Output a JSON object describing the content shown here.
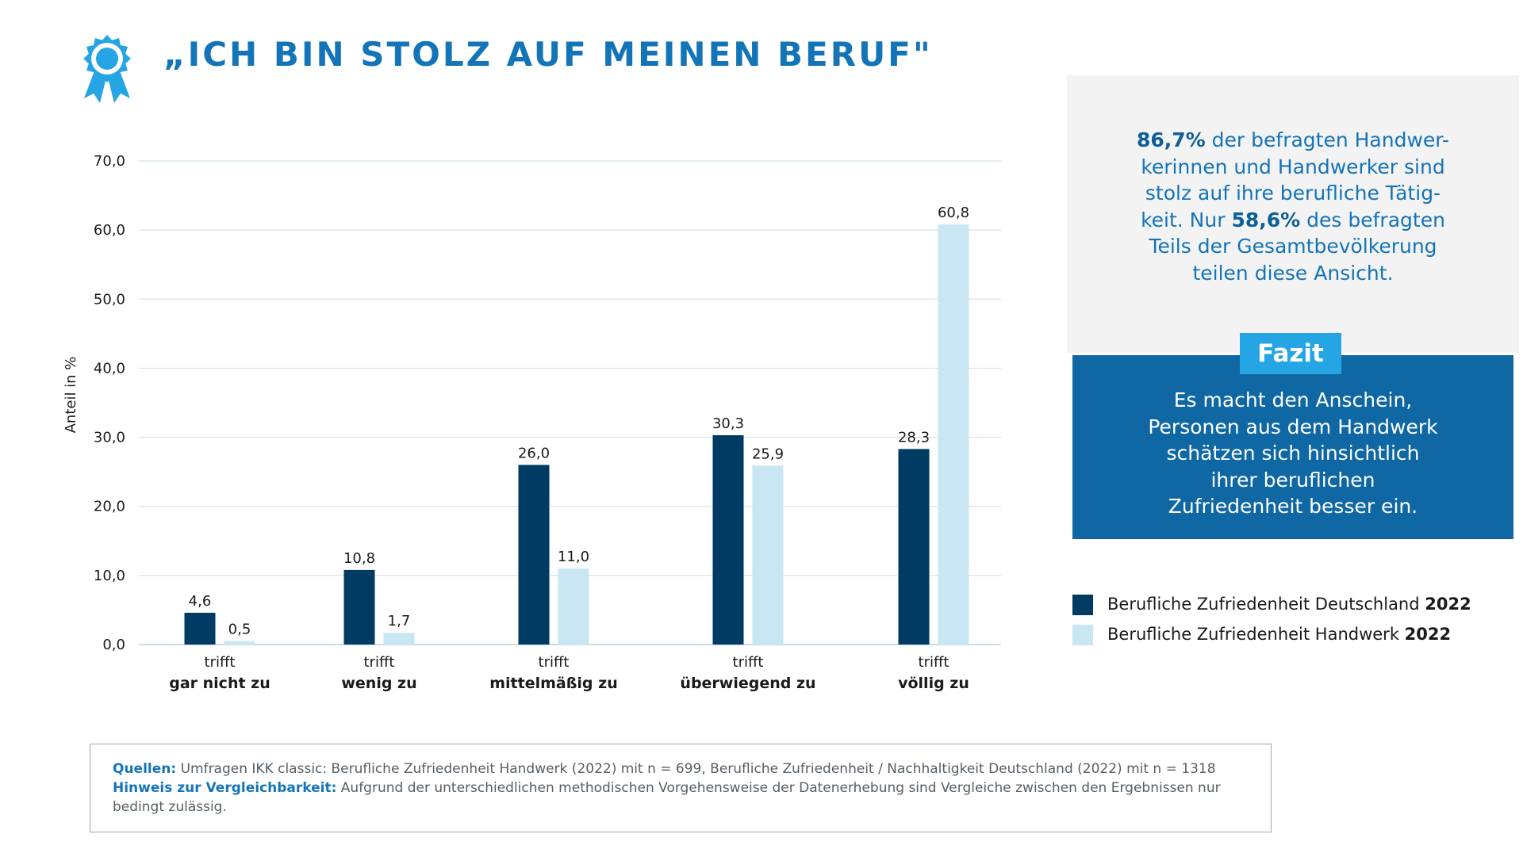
{
  "title": "„ICH BIN STOLZ AUF MEINEN BERUF\"",
  "icon": "award-rosette-icon",
  "colors": {
    "deutschland": "#003b63",
    "handwerk": "#c9e7f2",
    "accent": "#1474b8",
    "fazit_bg": "#0f68a3",
    "fazit_tag": "#26a5e4"
  },
  "chart_data": {
    "type": "bar",
    "ylabel": "Anteil in %",
    "ylim": [
      0,
      70
    ],
    "yticks": [
      "0,0",
      "10,0",
      "20,0",
      "30,0",
      "40,0",
      "50,0",
      "60,0",
      "70,0"
    ],
    "grid": true,
    "categories": [
      {
        "top": "trifft",
        "bottom": "gar nicht zu"
      },
      {
        "top": "trifft",
        "bottom": "wenig zu"
      },
      {
        "top": "trifft",
        "bottom": "mittelmäßig zu"
      },
      {
        "top": "trifft",
        "bottom": "überwiegend zu"
      },
      {
        "top": "trifft",
        "bottom": "völlig zu"
      }
    ],
    "series": [
      {
        "name": "Berufliche Zufriedenheit Deutschland 2022",
        "values": [
          4.6,
          10.8,
          26.0,
          30.3,
          28.3
        ],
        "labels": [
          "4,6",
          "10,8",
          "26,0",
          "30,3",
          "28,3"
        ]
      },
      {
        "name": "Berufliche Zufriedenheit Handwerk 2022",
        "values": [
          0.5,
          1.7,
          11.0,
          25.9,
          60.8
        ],
        "labels": [
          "0,5",
          "1,7",
          "11,0",
          "25,9",
          "60,8"
        ]
      }
    ],
    "legend_position": "right"
  },
  "legend": [
    {
      "text": "Berufliche Zufriedenheit Deutschland ",
      "bold": "2022"
    },
    {
      "text": "Berufliche Zufriedenheit Handwerk ",
      "bold": "2022"
    }
  ],
  "info": {
    "l1_bold": "86,7%",
    "l1_rest": " der befragten Handwer-",
    "l2": "kerinnen und Handwerker sind",
    "l3": "stolz auf ihre berufliche Tätig-",
    "l4_pre": "keit. Nur ",
    "l4_bold": "58,6%",
    "l4_post": " des befragten",
    "l5": "Teils der Gesamtbevölkerung",
    "l6": "teilen diese Ansicht."
  },
  "fazit": {
    "tag": "Fazit",
    "lines": [
      "Es macht den Anschein,",
      "Personen aus dem Handwerk",
      "schätzen sich hinsichtlich",
      "ihrer beruflichen",
      "Zufriedenheit besser ein."
    ]
  },
  "sources": {
    "q_label": "Quellen:",
    "q_text": " Umfragen IKK classic: Berufliche Zufriedenheit Handwerk (2022) mit n = 699, Berufliche Zufriedenheit / Nachhaltigkeit Deutschland (2022) mit n = 1318",
    "h_label": "Hinweis zur Vergleichbarkeit:",
    "h_text": " Aufgrund der unterschiedlichen methodischen Vorgehensweise der Datenerhebung sind Vergleiche zwischen den Ergebnissen nur",
    "h_text2": "bedingt zulässig."
  }
}
